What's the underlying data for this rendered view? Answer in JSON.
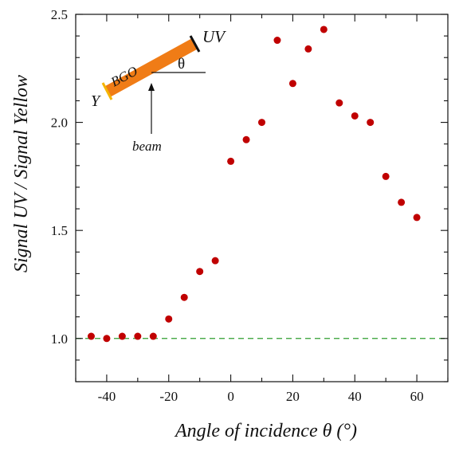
{
  "chart_data": {
    "type": "scatter",
    "xlabel": "Angle of incidence θ (°)",
    "ylabel": "Signal UV / Signal Yellow",
    "xlim": [
      -50,
      70
    ],
    "ylim": [
      0.8,
      2.5
    ],
    "xticks": [
      -40,
      -20,
      0,
      20,
      40,
      60
    ],
    "yticks": [
      1.0,
      1.5,
      2.0,
      2.5
    ],
    "ytick_labels": [
      "1.0",
      "1.5",
      "2.0",
      "2.5"
    ],
    "grid": false,
    "marker_color": "#c00000",
    "reference_line": {
      "y": 1.0,
      "style": "dashed",
      "color": "#2e9e2e"
    },
    "points": [
      {
        "x": -45,
        "y": 1.01
      },
      {
        "x": -40,
        "y": 1.0
      },
      {
        "x": -35,
        "y": 1.01
      },
      {
        "x": -30,
        "y": 1.01
      },
      {
        "x": -25,
        "y": 1.01
      },
      {
        "x": -20,
        "y": 1.09
      },
      {
        "x": -15,
        "y": 1.19
      },
      {
        "x": -10,
        "y": 1.31
      },
      {
        "x": -5,
        "y": 1.36
      },
      {
        "x": 0,
        "y": 1.82
      },
      {
        "x": 5,
        "y": 1.92
      },
      {
        "x": 10,
        "y": 2.0
      },
      {
        "x": 15,
        "y": 2.38
      },
      {
        "x": 20,
        "y": 2.18
      },
      {
        "x": 25,
        "y": 2.34
      },
      {
        "x": 30,
        "y": 2.43
      },
      {
        "x": 35,
        "y": 2.09
      },
      {
        "x": 40,
        "y": 2.03
      },
      {
        "x": 45,
        "y": 2.0
      },
      {
        "x": 50,
        "y": 1.75
      },
      {
        "x": 55,
        "y": 1.63
      },
      {
        "x": 60,
        "y": 1.56
      }
    ],
    "inset": {
      "crystal_label": "BGO",
      "uv_label": "UV",
      "yellow_label": "Y",
      "angle_label": "θ",
      "beam_label": "beam",
      "crystal_color": "#f07c16",
      "uv_end_color": "#111111",
      "yellow_end_color": "#f5b400"
    }
  }
}
